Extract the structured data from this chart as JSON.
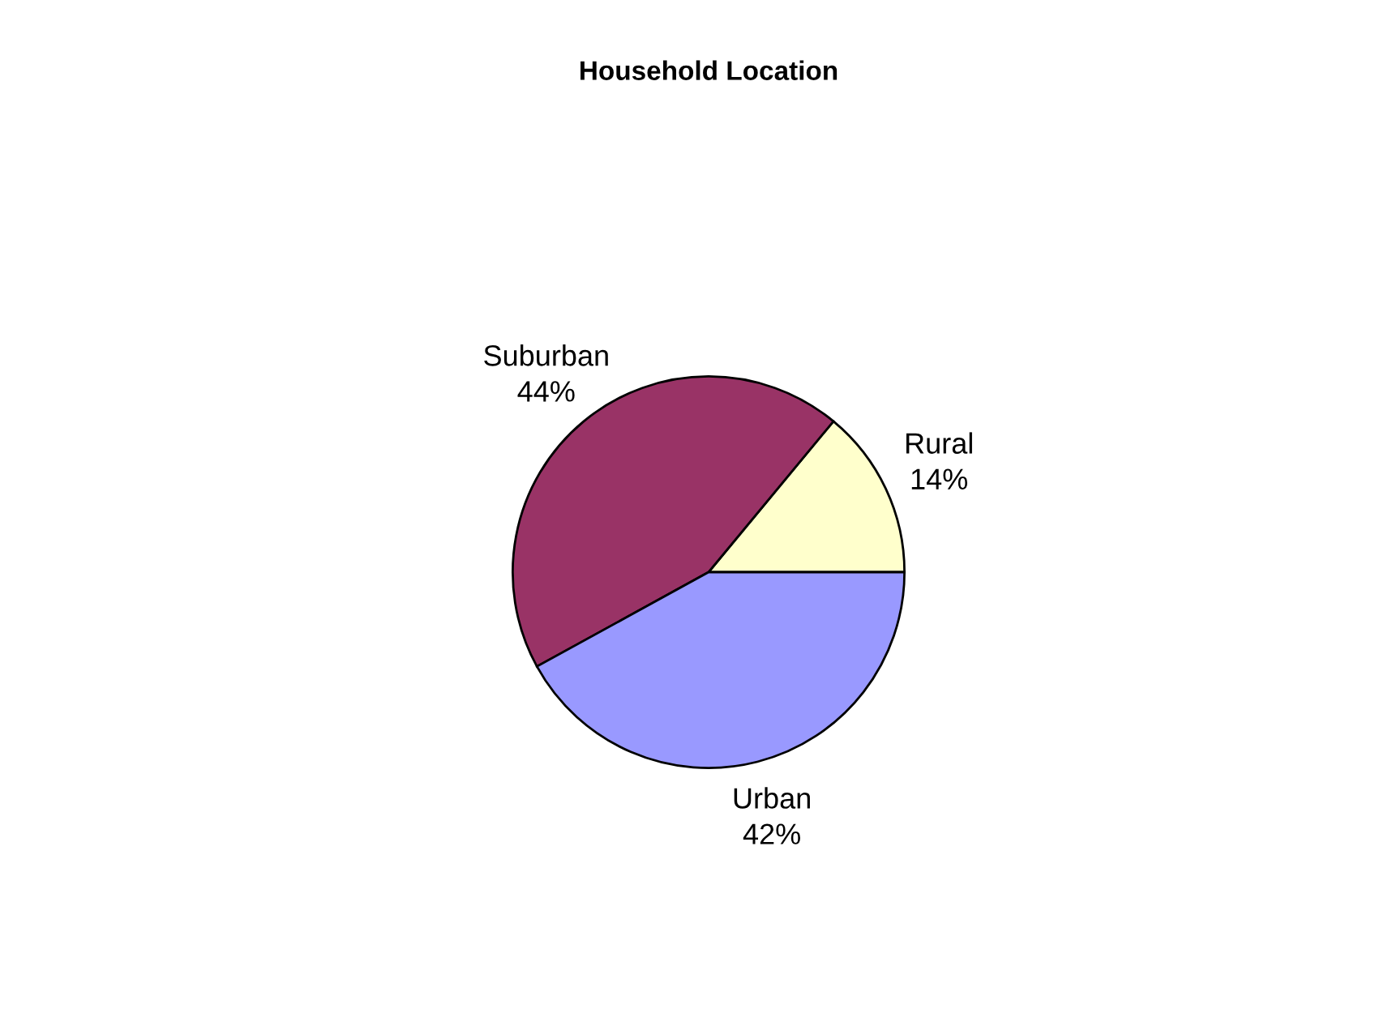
{
  "chart_data": {
    "type": "pie",
    "title": "Household Location",
    "categories": [
      "Rural",
      "Suburban",
      "Urban"
    ],
    "values": [
      14,
      44,
      42
    ],
    "value_labels": [
      "14%",
      "44%",
      "42%"
    ],
    "colors": [
      "#ffffcc",
      "#993366",
      "#9999ff"
    ],
    "legend": false
  }
}
